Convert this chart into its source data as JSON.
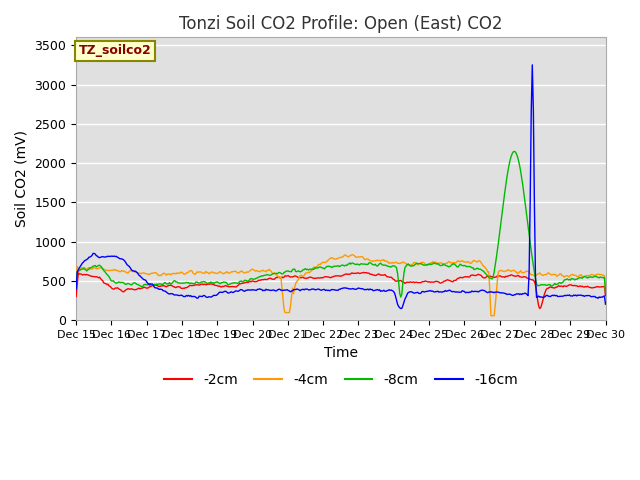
{
  "title": "Tonzi Soil CO2 Profile: Open (East) CO2",
  "ylabel": "Soil CO2 (mV)",
  "xlabel": "Time",
  "legend_label": "TZ_soilco2",
  "ylim": [
    0,
    3600
  ],
  "yticks": [
    0,
    500,
    1000,
    1500,
    2000,
    2500,
    3000,
    3500
  ],
  "series_labels": [
    "-2cm",
    "-4cm",
    "-8cm",
    "-16cm"
  ],
  "series_colors": [
    "#ff0000",
    "#ff9900",
    "#00bb00",
    "#0000ff"
  ],
  "background_color": "#ffffff",
  "plot_bg_color": "#e0e0e0",
  "title_fontsize": 12,
  "axis_fontsize": 10,
  "tick_fontsize": 9,
  "legend_label_color": "#880000",
  "legend_label_bg": "#ffffcc",
  "legend_label_edge": "#888800"
}
